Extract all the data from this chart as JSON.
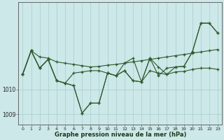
{
  "xlabel": "Graphe pression niveau de la mer (hPa)",
  "background_color": "#cce8e8",
  "plot_bg_color": "#cce8e8",
  "line_color": "#2d5a2d",
  "grid_color": "#aacccc",
  "x_ticks": [
    0,
    1,
    2,
    3,
    4,
    5,
    6,
    7,
    8,
    9,
    10,
    11,
    12,
    13,
    14,
    15,
    16,
    17,
    18,
    19,
    20,
    21,
    22,
    23
  ],
  "ylim": [
    1008.6,
    1013.5
  ],
  "ytick_vals": [
    1009.0,
    1010.0
  ],
  "ytick_labels": [
    "1009",
    "1010"
  ],
  "series1": [
    1010.6,
    1011.55,
    1011.3,
    1011.25,
    1011.1,
    1011.05,
    1011.0,
    1010.95,
    1010.9,
    1010.92,
    1010.97,
    1011.0,
    1011.05,
    1011.1,
    1011.15,
    1011.2,
    1011.25,
    1011.3,
    1011.35,
    1011.4,
    1011.45,
    1011.5,
    1011.55,
    1011.6
  ],
  "series2": [
    1010.6,
    1011.55,
    1010.85,
    1011.2,
    1010.35,
    1010.25,
    1010.15,
    1009.05,
    1009.45,
    1009.45,
    1010.65,
    1010.55,
    1010.75,
    1010.35,
    1010.3,
    1011.25,
    1010.55,
    1010.85,
    1010.9,
    1010.92,
    1011.5,
    1012.65,
    1012.65,
    1012.25
  ],
  "series3": [
    1010.6,
    1011.55,
    1010.85,
    1011.2,
    1010.35,
    1010.25,
    1010.65,
    1010.7,
    1010.75,
    1010.75,
    1010.65,
    1010.55,
    1010.75,
    1010.35,
    1010.3,
    1010.75,
    1010.65,
    1010.6,
    1010.7,
    1010.72,
    1010.8,
    1010.85,
    1010.85,
    1010.8
  ],
  "series4_x": [
    0,
    1,
    2,
    3,
    4,
    5,
    6,
    7,
    8,
    9,
    10,
    11,
    12,
    13,
    14,
    15,
    16,
    17,
    18,
    19,
    20,
    21,
    22,
    23
  ],
  "series4": [
    1010.6,
    1011.55,
    1010.85,
    1011.2,
    1010.35,
    1010.25,
    1010.15,
    1009.05,
    1009.45,
    1009.45,
    1010.65,
    1010.55,
    1011.05,
    1011.25,
    1010.3,
    1011.25,
    1010.9,
    1010.6,
    1010.9,
    1010.92,
    1011.5,
    1012.65,
    1012.65,
    1012.25
  ]
}
